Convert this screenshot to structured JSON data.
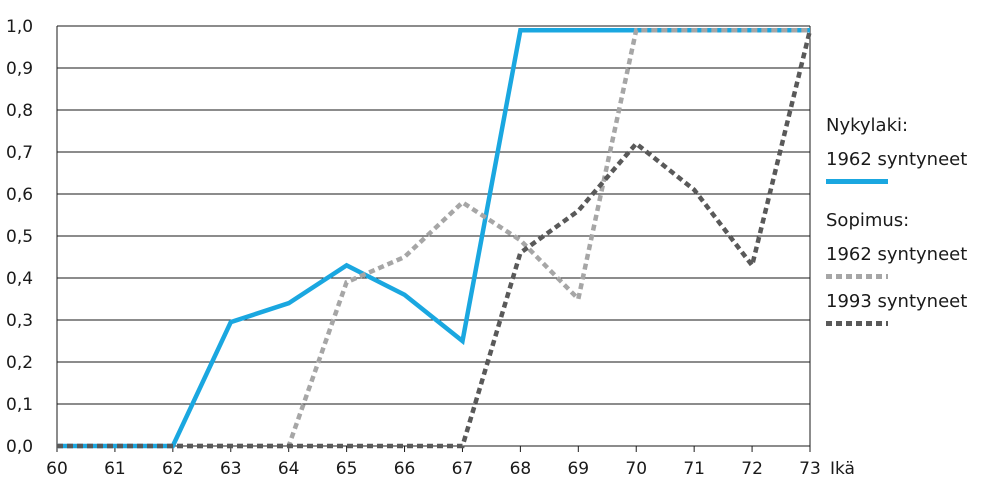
{
  "chart_data": {
    "type": "line",
    "x_label": "Ikä",
    "x": [
      60,
      61,
      62,
      63,
      64,
      65,
      66,
      67,
      68,
      69,
      70,
      71,
      72,
      73
    ],
    "x_ticks": [
      "60",
      "61",
      "62",
      "63",
      "64",
      "65",
      "66",
      "67",
      "68",
      "69",
      "70",
      "71",
      "72",
      "73"
    ],
    "ylim": [
      0,
      1
    ],
    "y_ticks": [
      "0,0",
      "0,1",
      "0,2",
      "0,3",
      "0,4",
      "0,5",
      "0,6",
      "0,7",
      "0,8",
      "0,9",
      "1,0"
    ],
    "y_tick_values": [
      0,
      0.1,
      0.2,
      0.3,
      0.4,
      0.5,
      0.6,
      0.7,
      0.8,
      0.9,
      1.0
    ],
    "grid": "horizontal",
    "legend_position": "right",
    "series": [
      {
        "name": "1962 syntyneet",
        "group": "Nykylaki:",
        "color": "#1aa7e0",
        "style": "solid",
        "values": [
          0.0,
          0.0,
          0.0,
          0.295,
          0.34,
          0.43,
          0.36,
          0.25,
          0.99,
          0.99,
          0.99,
          0.99,
          0.99,
          0.99
        ]
      },
      {
        "name": "1962 syntyneet",
        "group": "Sopimus:",
        "color": "#a6a6a6",
        "style": "dotted",
        "values": [
          0.0,
          0.0,
          0.0,
          0.0,
          0.0,
          0.39,
          0.45,
          0.58,
          0.49,
          0.35,
          0.99,
          0.99,
          0.99,
          0.99
        ]
      },
      {
        "name": "1993 syntyneet",
        "group": "Sopimus:",
        "color": "#595959",
        "style": "dotted",
        "values": [
          0.0,
          0.0,
          0.0,
          0.0,
          0.0,
          0.0,
          0.0,
          0.0,
          0.46,
          0.56,
          0.72,
          0.61,
          0.43,
          0.99
        ]
      }
    ]
  },
  "legend": {
    "group1_title": "Nykylaki:",
    "group2_title": "Sopimus:",
    "entry1_label": "1962 syntyneet",
    "entry2_label": "1962 syntyneet",
    "entry3_label": "1993 syntyneet"
  }
}
